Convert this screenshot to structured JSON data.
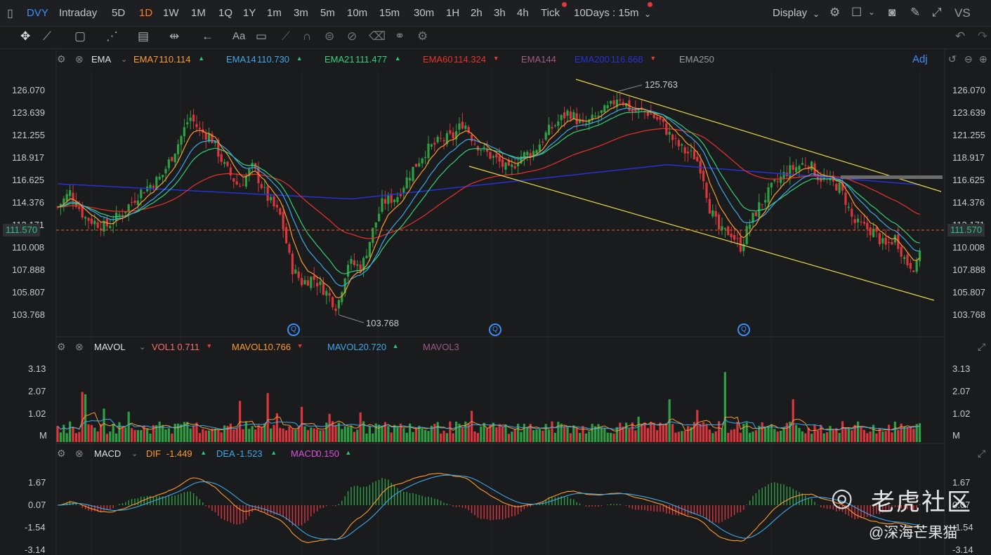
{
  "toolbar": {
    "ticker": "DVY",
    "periods": [
      "Intraday",
      "5D",
      "1D",
      "1W",
      "1M",
      "1Q",
      "1Y",
      "1m",
      "3m",
      "5m",
      "10m",
      "15m",
      "30m",
      "1H",
      "2h",
      "3h",
      "4h",
      "Tick"
    ],
    "active_period": "1D",
    "range": "10Days : 15m",
    "display": "Display",
    "vs": "VS"
  },
  "ema_legend": {
    "indicator": "EMA",
    "items": [
      {
        "label": "EMA7",
        "value": "110.114",
        "dir": "▲",
        "color": "#ff9a2e"
      },
      {
        "label": "EMA14",
        "value": "110.730",
        "dir": "▲",
        "color": "#3ea8e8"
      },
      {
        "label": "EMA21",
        "value": "111.477",
        "dir": "▲",
        "color": "#32d27a"
      },
      {
        "label": "EMA60",
        "value": "114.324",
        "dir": "▼",
        "color": "#e8322c"
      },
      {
        "label": "EMA144",
        "value": "",
        "dir": "",
        "color": "#a05a86"
      },
      {
        "label": "EMA200",
        "value": "116.668",
        "dir": "▼",
        "color": "#2632d8"
      },
      {
        "label": "EMA250",
        "value": "",
        "dir": "",
        "color": "#9a9a9a"
      }
    ],
    "adj": "Adj"
  },
  "price_axis": [
    "126.070",
    "123.639",
    "121.255",
    "118.917",
    "116.625",
    "114.376",
    "112.171",
    "110.008",
    "107.888",
    "105.807",
    "103.768"
  ],
  "current_price": "111.570",
  "high_label": "125.763",
  "low_label": "103.768",
  "vol_legend": {
    "indicator": "MAVOL",
    "items": [
      {
        "label": "VOL1",
        "value": "0.711",
        "dir": "▼",
        "color": "#ff6b6b"
      },
      {
        "label": "MAVOL1",
        "value": "0.766",
        "dir": "▼",
        "color": "#ff9a2e"
      },
      {
        "label": "MAVOL2",
        "value": "0.720",
        "dir": "▲",
        "color": "#3ea8e8"
      },
      {
        "label": "MAVOL3",
        "value": "",
        "dir": "",
        "color": "#a05a86"
      }
    ]
  },
  "vol_axis": [
    "3.13",
    "2.07",
    "1.02",
    "M"
  ],
  "macd_legend": {
    "indicator": "MACD",
    "items": [
      {
        "label": "DIF",
        "value": "-1.449",
        "dir": "▲",
        "color": "#ff9a2e"
      },
      {
        "label": "DEA",
        "value": "-1.523",
        "dir": "▲",
        "color": "#3ea8e8"
      },
      {
        "label": "MACD",
        "value": "0.150",
        "dir": "▲",
        "color": "#d84fd8"
      }
    ]
  },
  "macd_axis": [
    "1.67",
    "0.07",
    "-1.54",
    "-3.14"
  ],
  "watermark": {
    "brand": "老虎社区",
    "author": "@深海芒果猫"
  },
  "colors": {
    "up": "#2ea043",
    "down": "#d9363e",
    "channel": "#e6d94a",
    "bg": "#1a1b1d"
  }
}
